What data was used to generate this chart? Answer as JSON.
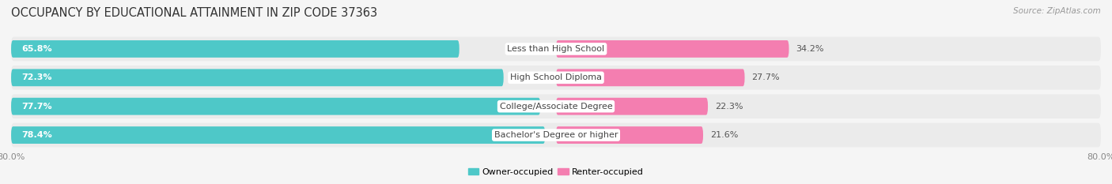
{
  "title": "OCCUPANCY BY EDUCATIONAL ATTAINMENT IN ZIP CODE 37363",
  "source": "Source: ZipAtlas.com",
  "categories": [
    "Less than High School",
    "High School Diploma",
    "College/Associate Degree",
    "Bachelor's Degree or higher"
  ],
  "owner_values": [
    65.8,
    72.3,
    77.7,
    78.4
  ],
  "renter_values": [
    34.2,
    27.7,
    22.3,
    21.6
  ],
  "owner_color": "#4EC8C8",
  "renter_color": "#F47EB0",
  "row_bg_color": "#EBEBEB",
  "background_color": "#F5F5F5",
  "title_fontsize": 10.5,
  "label_fontsize": 8.0,
  "source_fontsize": 7.5,
  "value_fontsize": 8.0,
  "xlim_left": -80.0,
  "xlim_right": 80.0
}
